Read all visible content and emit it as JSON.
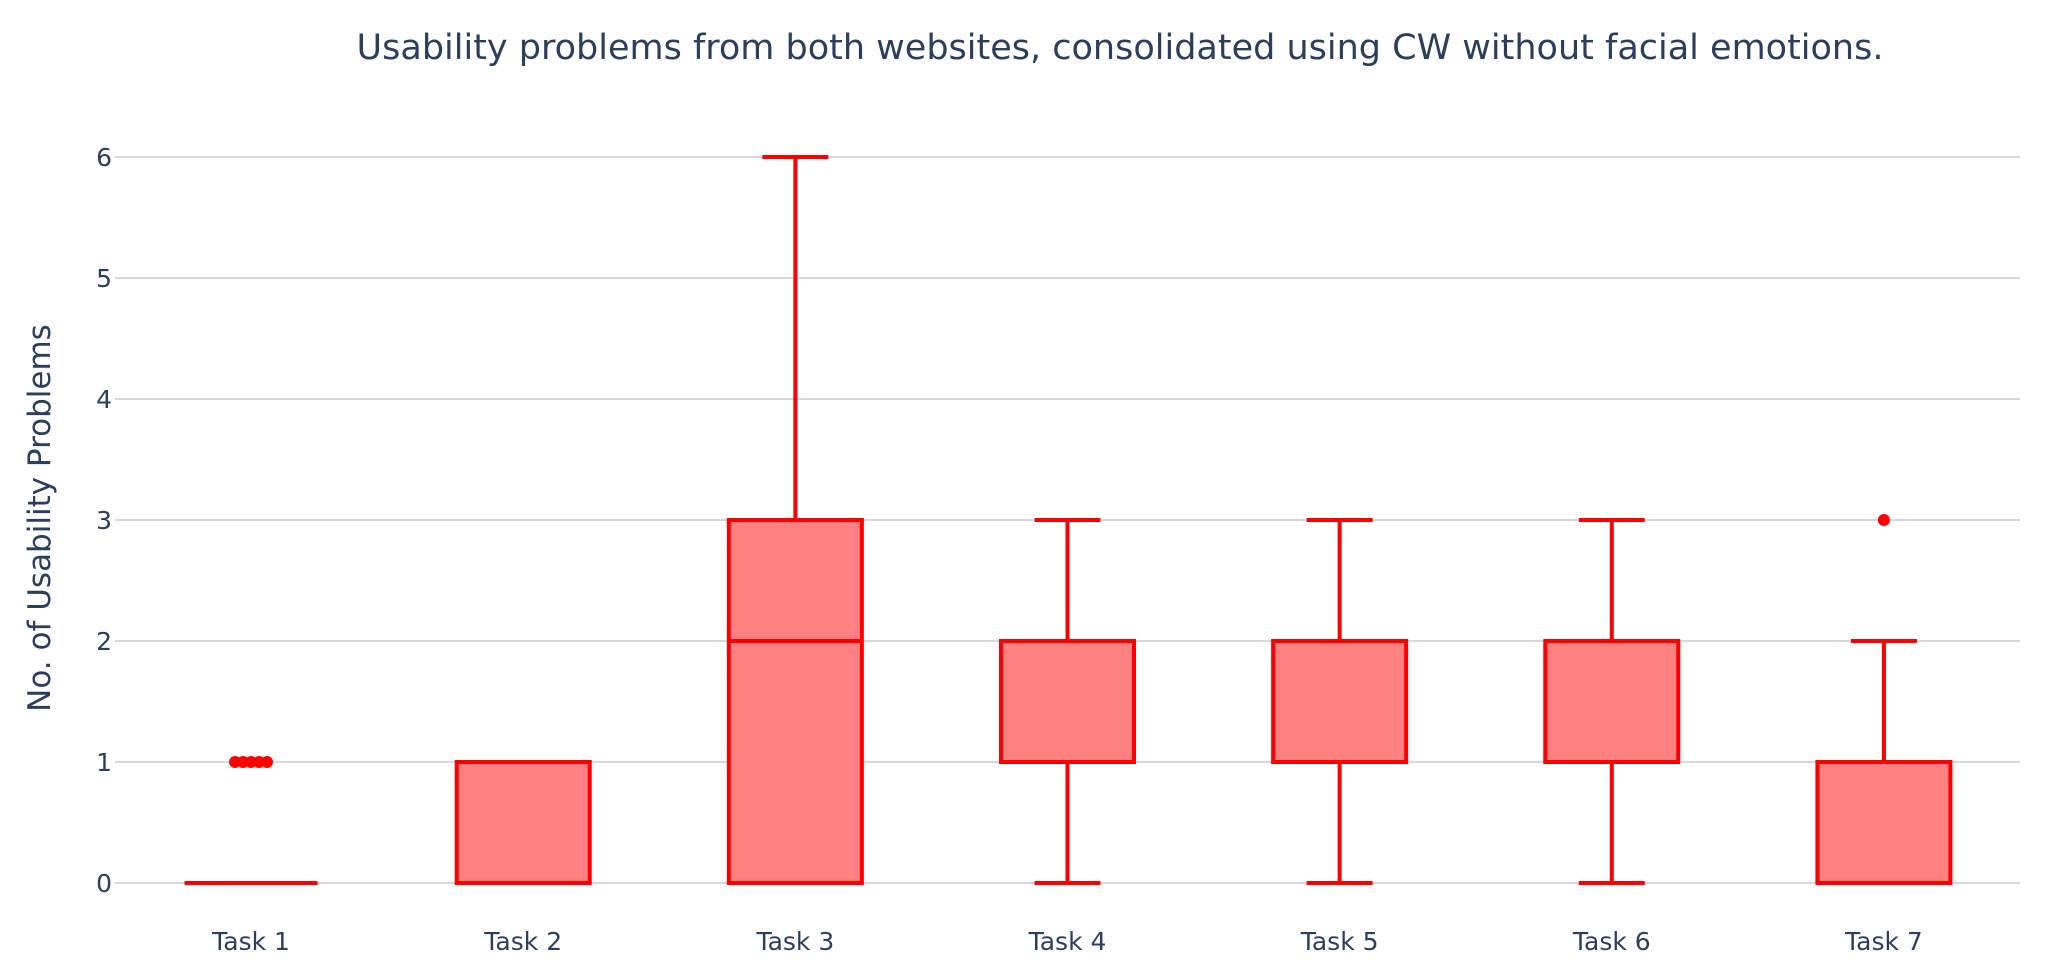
{
  "chart_data": {
    "type": "box",
    "title": "Usability problems from both websites, consolidated using CW without facial emotions.",
    "xlabel": "",
    "ylabel": "No. of Usability Problems",
    "ylim": [
      0,
      6
    ],
    "yticks": [
      0,
      1,
      2,
      3,
      4,
      5,
      6
    ],
    "grid": true,
    "legend": "none",
    "colors": {
      "line": "#ff0000",
      "fill": "#ff8080",
      "text": "#2a3f5f",
      "grid": "#cccccc"
    },
    "categories": [
      "Task 1",
      "Task 2",
      "Task 3",
      "Task 4",
      "Task 5",
      "Task 6",
      "Task 7"
    ],
    "boxes": [
      {
        "category": "Task 1",
        "min": 0,
        "q1": 0,
        "median": 0,
        "q3": 0,
        "max": 0,
        "outliers": [
          1,
          1,
          1,
          1,
          1
        ]
      },
      {
        "category": "Task 2",
        "min": 0,
        "q1": 0,
        "median": 0,
        "q3": 1,
        "max": 1,
        "outliers": []
      },
      {
        "category": "Task 3",
        "min": 0,
        "q1": 0,
        "median": 2,
        "q3": 3,
        "max": 6,
        "outliers": []
      },
      {
        "category": "Task 4",
        "min": 0,
        "q1": 1,
        "median": 1,
        "q3": 2,
        "max": 3,
        "outliers": []
      },
      {
        "category": "Task 5",
        "min": 0,
        "q1": 1,
        "median": 1,
        "q3": 2,
        "max": 3,
        "outliers": []
      },
      {
        "category": "Task 6",
        "min": 0,
        "q1": 1,
        "median": 2,
        "q3": 2,
        "max": 3,
        "outliers": []
      },
      {
        "category": "Task 7",
        "min": 0,
        "q1": 0,
        "median": 1,
        "q3": 1,
        "max": 2,
        "outliers": [
          3
        ]
      }
    ]
  }
}
